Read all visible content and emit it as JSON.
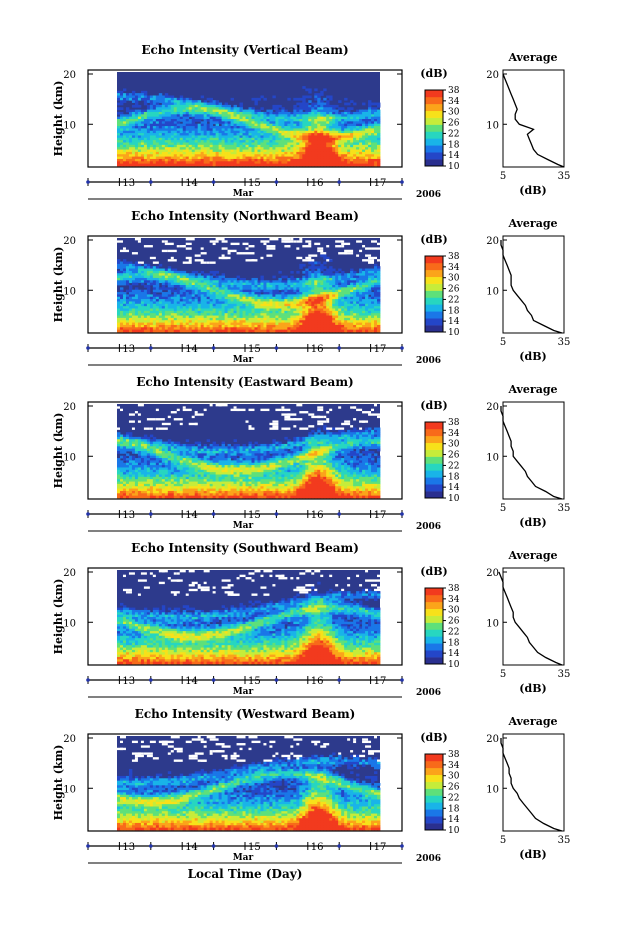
{
  "figure": {
    "xlabel": "Local Time (Day)",
    "month_label": "Mar",
    "year_label": "2006",
    "ylabel": "Height (km)",
    "colorbar_unit": "(dB)",
    "average_title": "Average",
    "average_xlabel": "(dB)"
  },
  "colors": {
    "background_low": "#2d3a8c",
    "colormap": [
      "#2a2f8f",
      "#2446c8",
      "#1a77e8",
      "#19b4e8",
      "#27d6c0",
      "#5ee07a",
      "#c6ec3a",
      "#f7e11a",
      "#fba41a",
      "#f86a1a",
      "#f23a1e"
    ]
  },
  "chart_data": [
    {
      "type": "heatmap",
      "title": "Echo Intensity (Vertical Beam)",
      "x_ticks": [
        "13",
        "14",
        "15",
        "16",
        "17"
      ],
      "y_ticks": [
        "10",
        "20"
      ],
      "ylim_km": [
        1.5,
        20
      ],
      "xlim_day": [
        12.5,
        17.5
      ],
      "colorbar": {
        "ticks": [
          "10",
          "14",
          "18",
          "22",
          "26",
          "30",
          "34",
          "38"
        ],
        "range_db": [
          10,
          38
        ]
      },
      "average_profile": {
        "title": "Average",
        "x_ticks": [
          "5",
          "35"
        ],
        "y_ticks": [
          "10",
          "20"
        ],
        "heights_km": [
          1.5,
          2,
          3,
          4,
          5,
          6,
          7,
          8,
          9,
          10,
          11,
          12,
          13,
          14,
          15,
          16,
          17,
          18,
          19,
          20
        ],
        "db": [
          35,
          32,
          27,
          22,
          20,
          19,
          18,
          17,
          20,
          13,
          11,
          11,
          12,
          11,
          10,
          9,
          8,
          7,
          6,
          5
        ]
      }
    },
    {
      "type": "heatmap",
      "title": "Echo Intensity (Northward Beam)",
      "x_ticks": [
        "13",
        "14",
        "15",
        "16",
        "17"
      ],
      "y_ticks": [
        "10",
        "20"
      ],
      "ylim_km": [
        1.5,
        20
      ],
      "xlim_day": [
        12.5,
        17.5
      ],
      "colorbar": {
        "ticks": [
          "10",
          "14",
          "18",
          "22",
          "26",
          "30",
          "34",
          "38"
        ],
        "range_db": [
          10,
          38
        ]
      },
      "average_profile": {
        "title": "Average",
        "x_ticks": [
          "5",
          "35"
        ],
        "y_ticks": [
          "10",
          "20"
        ],
        "heights_km": [
          1.5,
          2,
          3,
          4,
          5,
          6,
          7,
          8,
          9,
          10,
          11,
          12,
          13,
          14,
          15,
          16,
          17,
          18,
          19,
          20
        ],
        "db": [
          34,
          30,
          25,
          20,
          19,
          17,
          16,
          14,
          12,
          10,
          9,
          9,
          9,
          8,
          7,
          6,
          5,
          5,
          4,
          4
        ]
      }
    },
    {
      "type": "heatmap",
      "title": "Echo Intensity (Eastward Beam)",
      "x_ticks": [
        "13",
        "14",
        "15",
        "16",
        "17"
      ],
      "y_ticks": [
        "10",
        "20"
      ],
      "ylim_km": [
        1.5,
        20
      ],
      "xlim_day": [
        12.5,
        17.5
      ],
      "colorbar": {
        "ticks": [
          "10",
          "14",
          "18",
          "22",
          "26",
          "30",
          "34",
          "38"
        ],
        "range_db": [
          10,
          38
        ]
      },
      "average_profile": {
        "title": "Average",
        "x_ticks": [
          "5",
          "35"
        ],
        "y_ticks": [
          "10",
          "20"
        ],
        "heights_km": [
          1.5,
          2,
          3,
          4,
          5,
          6,
          7,
          8,
          9,
          10,
          11,
          12,
          13,
          14,
          15,
          16,
          17,
          18,
          19,
          20
        ],
        "db": [
          34,
          30,
          26,
          21,
          19,
          17,
          16,
          14,
          12,
          10,
          10,
          9,
          9,
          8,
          7,
          6,
          5,
          5,
          4,
          4
        ]
      }
    },
    {
      "type": "heatmap",
      "title": "Echo Intensity (Southward Beam)",
      "x_ticks": [
        "13",
        "14",
        "15",
        "16",
        "17"
      ],
      "y_ticks": [
        "10",
        "20"
      ],
      "ylim_km": [
        1.5,
        20
      ],
      "xlim_day": [
        12.5,
        17.5
      ],
      "colorbar": {
        "ticks": [
          "10",
          "14",
          "18",
          "22",
          "26",
          "30",
          "34",
          "38"
        ],
        "range_db": [
          10,
          38
        ]
      },
      "average_profile": {
        "title": "Average",
        "x_ticks": [
          "5",
          "35"
        ],
        "y_ticks": [
          "10",
          "20"
        ],
        "heights_km": [
          1.5,
          2,
          3,
          4,
          5,
          6,
          7,
          8,
          9,
          10,
          11,
          12,
          13,
          14,
          15,
          16,
          17,
          18,
          19,
          20
        ],
        "db": [
          34,
          31,
          26,
          22,
          20,
          18,
          17,
          15,
          13,
          11,
          10,
          10,
          9,
          8,
          7,
          6,
          5,
          5,
          4,
          3
        ]
      }
    },
    {
      "type": "heatmap",
      "title": "Echo Intensity (Westward Beam)",
      "x_ticks": [
        "13",
        "14",
        "15",
        "16",
        "17"
      ],
      "y_ticks": [
        "10",
        "20"
      ],
      "ylim_km": [
        1.5,
        20
      ],
      "xlim_day": [
        12.5,
        17.5
      ],
      "colorbar": {
        "ticks": [
          "10",
          "14",
          "18",
          "22",
          "26",
          "30",
          "34",
          "38"
        ],
        "range_db": [
          10,
          38
        ]
      },
      "average_profile": {
        "title": "Average",
        "x_ticks": [
          "5",
          "35"
        ],
        "y_ticks": [
          "10",
          "20"
        ],
        "heights_km": [
          1.5,
          2,
          3,
          4,
          5,
          6,
          7,
          8,
          9,
          10,
          11,
          12,
          13,
          14,
          15,
          16,
          17,
          18,
          19,
          20
        ],
        "db": [
          34,
          30,
          25,
          21,
          19,
          17,
          15,
          13,
          12,
          10,
          9,
          9,
          8,
          8,
          7,
          6,
          5,
          5,
          4,
          4
        ]
      }
    }
  ]
}
